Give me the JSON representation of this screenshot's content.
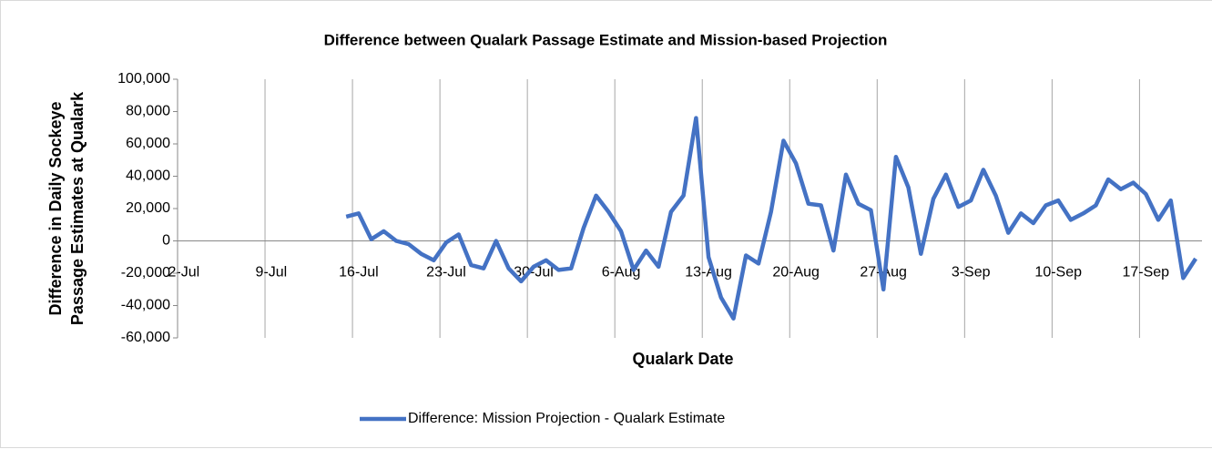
{
  "chart_data": {
    "type": "line",
    "title": "Difference between Qualark Passage Estimate and Mission-based Projection",
    "x_label": "Qualark Date",
    "y_label": [
      "Difference in Daily Sockeye",
      "Passage Estimates at Qualark"
    ],
    "categories": [
      "2-Jul",
      null,
      null,
      null,
      null,
      null,
      null,
      "9-Jul",
      null,
      null,
      null,
      null,
      null,
      null,
      "16-Jul",
      null,
      null,
      null,
      null,
      null,
      null,
      "23-Jul",
      null,
      null,
      null,
      null,
      null,
      null,
      "30-Jul",
      null,
      null,
      null,
      null,
      null,
      null,
      "6-Aug",
      null,
      null,
      null,
      null,
      null,
      null,
      "13-Aug",
      null,
      null,
      null,
      null,
      null,
      null,
      "20-Aug",
      null,
      null,
      null,
      null,
      null,
      null,
      "27-Aug",
      null,
      null,
      null,
      null,
      null,
      null,
      "3-Sep",
      null,
      null,
      null,
      null,
      null,
      null,
      "10-Sep",
      null,
      null,
      null,
      null,
      null,
      null,
      "17-Sep",
      null,
      null,
      null,
      null
    ],
    "series": [
      {
        "name": "Difference: Mission Projection - Qualark Estimate",
        "color": "#4472c4",
        "values": [
          null,
          null,
          null,
          null,
          null,
          null,
          null,
          null,
          null,
          null,
          null,
          null,
          null,
          15000,
          17000,
          1000,
          6000,
          0,
          -2000,
          -8000,
          -12000,
          -1000,
          4000,
          -15000,
          -17000,
          0,
          -17000,
          -25000,
          -16000,
          -12000,
          -18000,
          -17000,
          8000,
          28000,
          18000,
          6000,
          -18000,
          -6000,
          -16000,
          18000,
          28000,
          76000,
          -10000,
          -35000,
          -48000,
          -9000,
          -14000,
          18000,
          62000,
          48000,
          23000,
          22000,
          -6000,
          41000,
          23000,
          19000,
          -30000,
          52000,
          33000,
          -8000,
          26000,
          41000,
          21000,
          25000,
          44000,
          28000,
          5000,
          17000,
          11000,
          22000,
          25000,
          13000,
          17000,
          22000,
          38000,
          32000,
          36000,
          29000,
          13000,
          25000,
          -23000,
          -11000
        ]
      }
    ],
    "ylim": [
      -60000,
      100000
    ],
    "yticks": [
      {
        "value": -60000,
        "label": "-60,000"
      },
      {
        "value": -40000,
        "label": "-40,000"
      },
      {
        "value": -20000,
        "label": "-20,000"
      },
      0,
      {
        "value": 20000,
        "label": "20,000"
      },
      {
        "value": 40000,
        "label": "40,000"
      },
      {
        "value": 60000,
        "label": "60,000"
      },
      {
        "value": 80000,
        "label": "80,000"
      },
      {
        "value": 100000,
        "label": "100,000"
      }
    ],
    "grid": "x",
    "legend": "bottom"
  }
}
